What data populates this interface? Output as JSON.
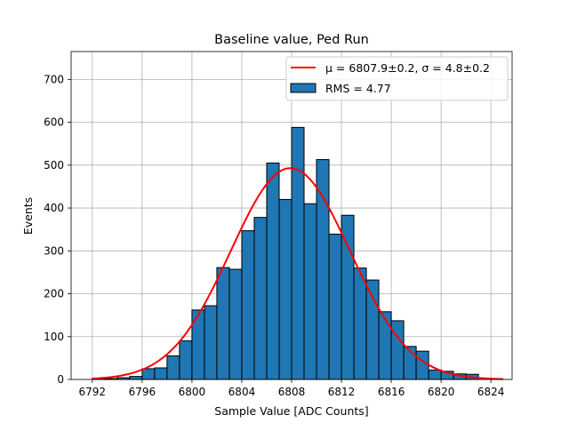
{
  "chart_data": {
    "type": "bar",
    "title": "Baseline value, Ped Run",
    "xlabel": "Sample Value [ADC Counts]",
    "ylabel": "Events",
    "xlim": [
      6790.3,
      6825.7
    ],
    "ylim": [
      0,
      765
    ],
    "xticks": [
      6792,
      6796,
      6800,
      6804,
      6808,
      6812,
      6816,
      6820,
      6824
    ],
    "yticks": [
      0,
      100,
      200,
      300,
      400,
      500,
      600,
      700
    ],
    "grid": true,
    "legend_position": "top-right",
    "bin_width": 1,
    "series": [
      {
        "name": "RMS = 4.77",
        "kind": "histogram",
        "color": "#1f77b4",
        "edgecolor": "#000000",
        "bin_lefts": [
          6792,
          6793,
          6794,
          6795,
          6796,
          6797,
          6798,
          6799,
          6800,
          6801,
          6802,
          6803,
          6804,
          6805,
          6806,
          6807,
          6808,
          6809,
          6810,
          6811,
          6812,
          6813,
          6814,
          6815,
          6816,
          6817,
          6818,
          6819,
          6820,
          6821,
          6822
        ],
        "values": [
          3,
          2,
          4,
          7,
          25,
          27,
          55,
          90,
          162,
          172,
          261,
          257,
          347,
          378,
          505,
          420,
          588,
          410,
          513,
          339,
          383,
          260,
          232,
          158,
          137,
          77,
          66,
          22,
          19,
          13,
          12
        ]
      },
      {
        "name": "μ = 6807.9±0.2, σ = 4.8±0.2",
        "kind": "gaussian_fit",
        "color": "#ff0000",
        "amplitude": 493,
        "mu": 6807.9,
        "sigma": 4.8,
        "x_range": [
          6792,
          6825
        ]
      }
    ]
  }
}
